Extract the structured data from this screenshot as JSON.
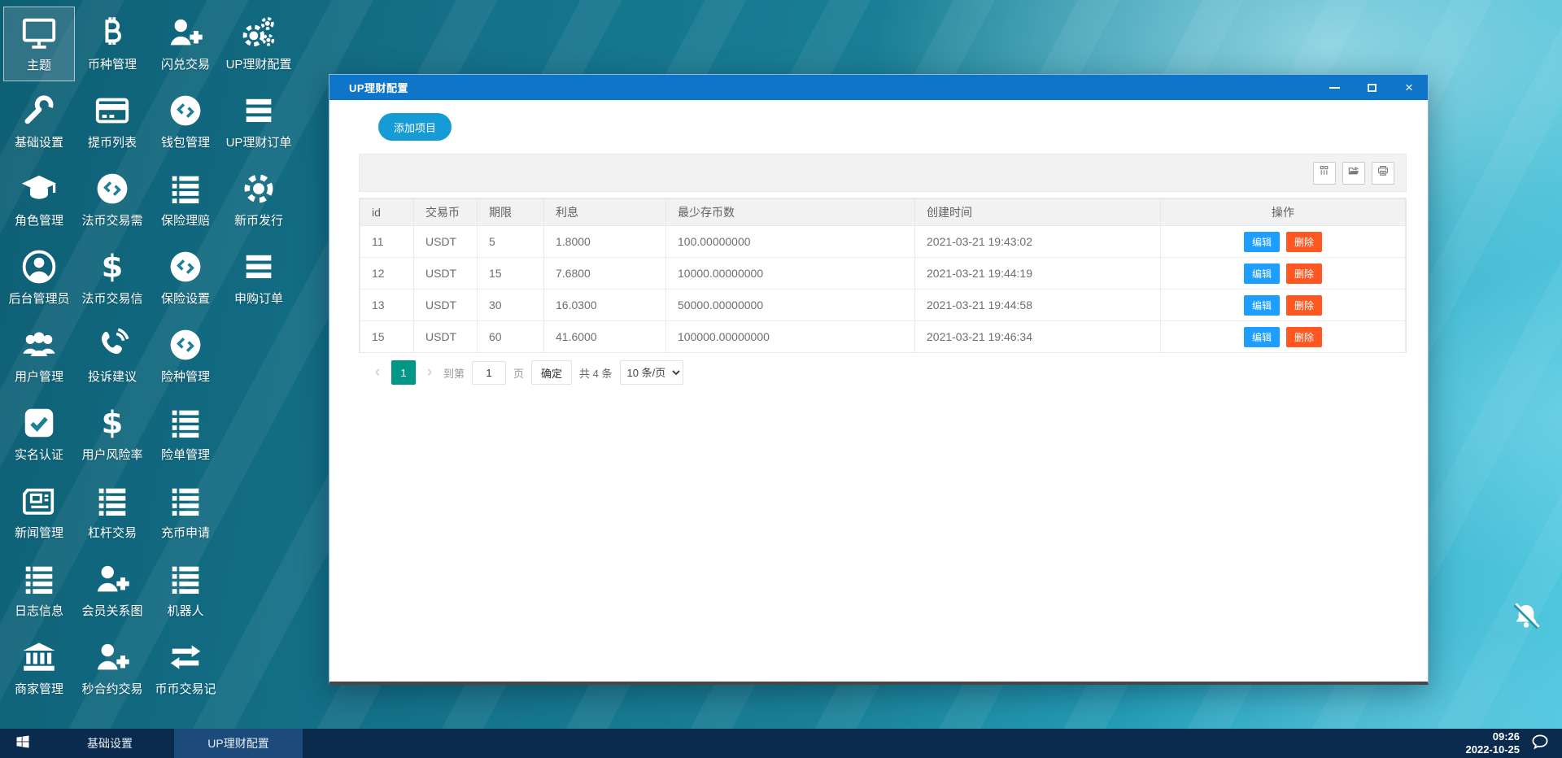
{
  "desktop": {
    "icon_columns": [
      [
        {
          "label": "主题",
          "icon": "monitor-icon",
          "selected": true
        },
        {
          "label": "基础设置",
          "icon": "wrench-icon"
        },
        {
          "label": "角色管理",
          "icon": "graduation-cap-icon"
        },
        {
          "label": "后台管理员",
          "icon": "admin-user-icon"
        },
        {
          "label": "用户管理",
          "icon": "users-icon"
        },
        {
          "label": "实名认证",
          "icon": "check-square-icon"
        },
        {
          "label": "新闻管理",
          "icon": "newspaper-icon"
        },
        {
          "label": "日志信息",
          "icon": "list-icon"
        },
        {
          "label": "商家管理",
          "icon": "bank-icon"
        }
      ],
      [
        {
          "label": "币种管理",
          "icon": "bitcoin-icon"
        },
        {
          "label": "提币列表",
          "icon": "bank-card-icon"
        },
        {
          "label": "法币交易需",
          "icon": "coin-icon"
        },
        {
          "label": "法币交易信",
          "icon": "dollar-icon"
        },
        {
          "label": "投诉建议",
          "icon": "phone-icon"
        },
        {
          "label": "用户风险率",
          "icon": "dollar-icon"
        },
        {
          "label": "杠杆交易",
          "icon": "list-icon"
        },
        {
          "label": "会员关系图",
          "icon": "user-plus-icon"
        },
        {
          "label": "秒合约交易",
          "icon": "user-plus-icon"
        }
      ],
      [
        {
          "label": "闪兑交易",
          "icon": "user-plus-icon"
        },
        {
          "label": "钱包管理",
          "icon": "coin-icon"
        },
        {
          "label": "保险理赔",
          "icon": "list-icon"
        },
        {
          "label": "保险设置",
          "icon": "coin-icon"
        },
        {
          "label": "险种管理",
          "icon": "coin-icon"
        },
        {
          "label": "险单管理",
          "icon": "list-icon"
        },
        {
          "label": "充币申请",
          "icon": "list-icon"
        },
        {
          "label": "机器人",
          "icon": "list-icon"
        },
        {
          "label": "币币交易记",
          "icon": "swap-arrows-icon"
        }
      ],
      [
        {
          "label": "UP理财配置",
          "icon": "gears-icon"
        },
        {
          "label": "UP理财订单",
          "icon": "bars-icon"
        },
        {
          "label": "新币发行",
          "icon": "gear-icon"
        },
        {
          "label": "申购订单",
          "icon": "bars-icon"
        }
      ]
    ],
    "bell_icon": "bell-slash-icon"
  },
  "window": {
    "title": "UP理财配置",
    "controls": {
      "minimize": "最小化",
      "maximize": "最大化",
      "close": "关闭"
    },
    "add_button": "添加项目",
    "toolbar_icons": [
      "columns-icon",
      "export-icon",
      "print-icon"
    ],
    "table": {
      "headers": [
        "id",
        "交易币",
        "期限",
        "利息",
        "最少存币数",
        "创建时间",
        "操作"
      ],
      "rows": [
        [
          "11",
          "USDT",
          "5",
          "1.8000",
          "100.00000000",
          "2021-03-21 19:43:02"
        ],
        [
          "12",
          "USDT",
          "15",
          "7.6800",
          "10000.00000000",
          "2021-03-21 19:44:19"
        ],
        [
          "13",
          "USDT",
          "30",
          "16.0300",
          "50000.00000000",
          "2021-03-21 19:44:58"
        ],
        [
          "15",
          "USDT",
          "60",
          "41.6000",
          "100000.00000000",
          "2021-03-21 19:46:34"
        ]
      ],
      "actions": {
        "edit": "编辑",
        "delete": "删除"
      }
    },
    "pagination": {
      "prev": "‹",
      "page": "1",
      "next": "›",
      "goto_prefix": "到第",
      "goto_value": "1",
      "goto_suffix": "页",
      "confirm": "确定",
      "total": "共 4 条",
      "page_size": "10 条/页"
    }
  },
  "taskbar": {
    "items": [
      {
        "label": "基础设置",
        "active": false
      },
      {
        "label": "UP理财配置",
        "active": true
      }
    ],
    "clock": {
      "time": "09:26",
      "date": "2022-10-25"
    }
  },
  "colors": {
    "titlebar_blue": "#0e75c8",
    "add_button_blue": "#169bd5",
    "edit_button_blue": "#1e9fff",
    "delete_button_red": "#ff5722",
    "pager_active_teal": "#009688",
    "taskbar_navy": "#0b2b4e",
    "taskbar_active": "#1c4a7b",
    "desktop_teal": "#1a8097"
  }
}
